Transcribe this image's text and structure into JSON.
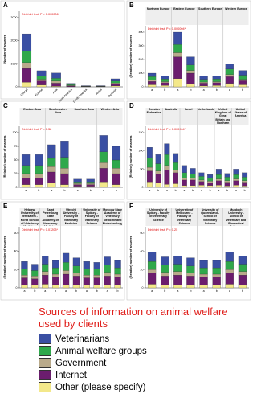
{
  "chart_data": [
    {
      "type": "stacked_bar",
      "label": "A",
      "annotation": "Dirichlet test: P < 0.000006*",
      "ylabel": "Number of answers",
      "categories": [
        "Overall",
        "Europe",
        "Asia",
        "North America",
        "South America",
        "Africa",
        "Oceania"
      ],
      "ylim": [
        0,
        3000
      ],
      "yticks": [
        0,
        1000,
        2000,
        3000
      ],
      "series": [
        {
          "name": "Veterinarians",
          "color": "#3a4fa3",
          "values": [
            750,
            220,
            230,
            50,
            15,
            15,
            100
          ]
        },
        {
          "name": "Animal welfare groups",
          "color": "#2fa84b",
          "values": [
            500,
            150,
            120,
            40,
            10,
            10,
            80
          ]
        },
        {
          "name": "Government",
          "color": "#b9aa8b",
          "values": [
            250,
            70,
            90,
            20,
            8,
            8,
            40
          ]
        },
        {
          "name": "Internet",
          "color": "#6b1d6e",
          "values": [
            600,
            180,
            130,
            30,
            12,
            12,
            90
          ]
        },
        {
          "name": "Other (please specify)",
          "color": "#f3e88a",
          "values": [
            200,
            80,
            30,
            10,
            5,
            5,
            40
          ]
        }
      ]
    },
    {
      "type": "stacked_bar",
      "label": "B",
      "annotation": "Dirichlet test: P < 0.000004*",
      "ylabel": "(Relative) number of answers",
      "groups": [
        "Northern Europe",
        "Eastern Europe",
        "Southern Europe",
        "Western Europe"
      ],
      "categories": [
        "a",
        "b",
        "a",
        "b",
        "a",
        "b",
        "a",
        "b"
      ],
      "ylim": [
        0,
        400
      ],
      "yticks": [
        0,
        100,
        200,
        300,
        400
      ],
      "series": [
        {
          "values": [
            25,
            20,
            90,
            60,
            25,
            20,
            40,
            35
          ]
        },
        {
          "values": [
            25,
            20,
            60,
            40,
            20,
            20,
            40,
            30
          ]
        },
        {
          "values": [
            10,
            8,
            30,
            20,
            8,
            8,
            15,
            10
          ]
        },
        {
          "values": [
            25,
            20,
            160,
            80,
            20,
            20,
            50,
            30
          ]
        },
        {
          "values": [
            15,
            10,
            60,
            20,
            7,
            10,
            25,
            15
          ]
        }
      ]
    },
    {
      "type": "stacked_bar",
      "label": "C",
      "annotation": "Dirichlet test: P = 0.38",
      "ylabel": "(Relative) number of answers",
      "groups": [
        "Eastern Asia",
        "Southeastern Asia",
        "Southern Asia",
        "Western Asia"
      ],
      "categories": [
        "a",
        "b",
        "a",
        "b",
        "a",
        "b",
        "a",
        "b"
      ],
      "ylim": [
        0,
        100
      ],
      "yticks": [
        0,
        25,
        50,
        75,
        100
      ],
      "series": [
        {
          "values": [
            20,
            20,
            25,
            30,
            5,
            5,
            30,
            25
          ]
        },
        {
          "values": [
            15,
            15,
            15,
            20,
            3,
            3,
            20,
            15
          ]
        },
        {
          "values": [
            8,
            8,
            10,
            10,
            2,
            2,
            10,
            10
          ]
        },
        {
          "values": [
            12,
            12,
            20,
            20,
            3,
            3,
            25,
            20
          ]
        },
        {
          "values": [
            5,
            5,
            8,
            5,
            2,
            2,
            10,
            5
          ]
        }
      ]
    },
    {
      "type": "stacked_bar",
      "label": "D",
      "annotation": "Dirichlet test: P < 0.000004*",
      "ylabel": "(Relative) number of answers",
      "groups": [
        "Russian Federation",
        "Australia",
        "Israel",
        "Netherlands",
        "United Kingdom of Great Britain and Northern Ireland",
        "United States of America"
      ],
      "categories": [
        "a",
        "b",
        "a",
        "b",
        "a",
        "b",
        "a",
        "b",
        "a",
        "b",
        "a",
        "b"
      ],
      "ylim": [
        0,
        150
      ],
      "yticks": [
        0,
        50,
        100,
        150
      ],
      "series": [
        {
          "values": [
            30,
            25,
            30,
            25,
            20,
            15,
            10,
            10,
            15,
            10,
            15,
            12
          ]
        },
        {
          "values": [
            25,
            20,
            30,
            20,
            15,
            12,
            10,
            8,
            12,
            10,
            12,
            10
          ]
        },
        {
          "values": [
            10,
            8,
            12,
            8,
            5,
            5,
            4,
            4,
            5,
            4,
            5,
            4
          ]
        },
        {
          "values": [
            30,
            25,
            40,
            30,
            15,
            15,
            10,
            8,
            12,
            10,
            12,
            10
          ]
        },
        {
          "values": [
            15,
            12,
            8,
            10,
            5,
            5,
            6,
            5,
            6,
            4,
            6,
            4
          ]
        }
      ]
    },
    {
      "type": "stacked_bar",
      "label": "E",
      "annotation": "Dirichlet test: P = 0.01203*",
      "ylabel": "(Relative) number of answers",
      "groups": [
        "Hebrew University of Jerusalem - Koret School of Veterinary Medicine",
        "Saint Petersburg State Academy of Veterinary Medicine",
        "Utrecht University - Faculty of Veterinary Medicine",
        "University of Sydney - Faculty of Veterinary Science",
        "Moscow State Academy of Veterinary Medicine and Biotechnology"
      ],
      "categories": [
        "a",
        "b",
        "a",
        "b",
        "a",
        "b",
        "a",
        "b",
        "a",
        "b"
      ],
      "ylim": [
        0,
        60
      ],
      "yticks": [
        0,
        20,
        40,
        60
      ],
      "series": [
        {
          "values": [
            8,
            7,
            9,
            8,
            10,
            9,
            8,
            7,
            9,
            8
          ]
        },
        {
          "values": [
            7,
            6,
            8,
            7,
            9,
            8,
            7,
            7,
            8,
            7
          ]
        },
        {
          "values": [
            3,
            3,
            4,
            3,
            4,
            3,
            3,
            3,
            4,
            3
          ]
        },
        {
          "values": [
            8,
            7,
            10,
            9,
            12,
            10,
            8,
            8,
            10,
            9
          ]
        },
        {
          "values": [
            3,
            3,
            4,
            3,
            3,
            3,
            3,
            3,
            3,
            3
          ]
        }
      ]
    },
    {
      "type": "stacked_bar",
      "label": "F",
      "annotation": "Dirichlet test: P = 0.25",
      "ylabel": "(Relative) number of answers",
      "groups": [
        "University of Sydney - Faculty of Veterinary Science",
        "University of Melbourne - Faculty of Veterinary Science",
        "University of Queensland - School of Veterinary Science",
        "Murdoch University - School of Veterinary and Biomedical Sciences"
      ],
      "categories": [
        "a",
        "b",
        "a",
        "b",
        "a",
        "b",
        "a",
        "b"
      ],
      "ylim": [
        0,
        60
      ],
      "yticks": [
        0,
        20,
        40,
        60
      ],
      "series": [
        {
          "values": [
            10,
            9,
            9,
            9,
            8,
            8,
            10,
            9
          ]
        },
        {
          "values": [
            9,
            8,
            8,
            8,
            7,
            7,
            9,
            8
          ]
        },
        {
          "values": [
            4,
            4,
            4,
            3,
            3,
            3,
            4,
            4
          ]
        },
        {
          "values": [
            12,
            10,
            11,
            10,
            9,
            9,
            12,
            11
          ]
        },
        {
          "values": [
            4,
            3,
            3,
            3,
            3,
            3,
            4,
            3
          ]
        }
      ]
    }
  ],
  "legend": {
    "title": "Sources of information on animal welfare used by clients"
  }
}
